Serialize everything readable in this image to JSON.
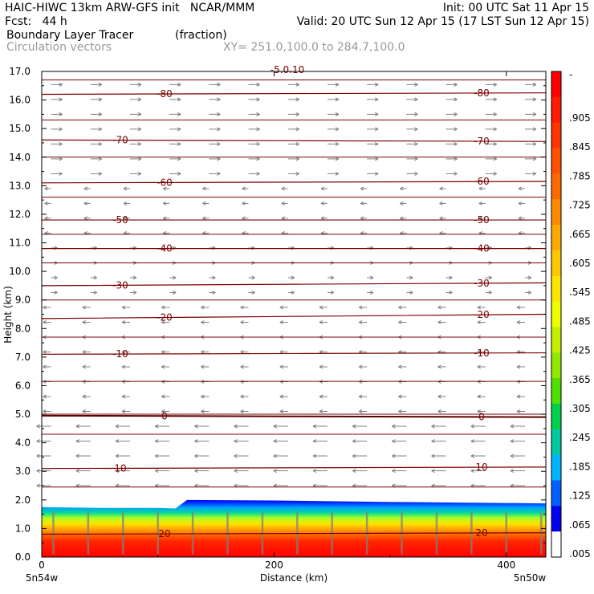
{
  "header": {
    "line1_left": "HAIC-HIWC 13km ARW-GFS init   NCAR/MMM",
    "line1_right": "Init: 00 UTC Sat 11 Apr 15",
    "line2_left": "Fcst:   44 h",
    "line2_right": "Valid: 20 UTC Sun 12 Apr 15 (17 LST Sun 12 Apr 15)",
    "field_name": "Boundary Layer Tracer",
    "field_units": "(fraction)",
    "overlay_name": "Circulation vectors",
    "xsection": "XY= 251.0,100.0 to 284.7,100.0"
  },
  "chart_data": {
    "type": "heatmap",
    "ylabel": "Height (km)",
    "xlabel": "Distance (km)",
    "x_endpoints": [
      "5n54w",
      "5n50w"
    ],
    "xlim": [
      0,
      434
    ],
    "ylim": [
      0,
      17
    ],
    "xticks": [
      "0",
      "200",
      "400"
    ],
    "yticks": [
      "0.0",
      "1.0",
      "2.0",
      "3.0",
      "4.0",
      "5.0",
      "6.0",
      "7.0",
      "8.0",
      "9.0",
      "10.0",
      "11.0",
      "12.0",
      "13.0",
      "14.0",
      "15.0",
      "16.0",
      "17.0"
    ],
    "colorbar": {
      "labels": [
        "-",
        ".905",
        ".845",
        ".785",
        ".725",
        ".665",
        ".605",
        ".545",
        ".485",
        ".425",
        ".365",
        ".305",
        ".245",
        ".185",
        ".125",
        ".065",
        ".005"
      ],
      "colors": [
        "#ff0000",
        "#ff1a00",
        "#ff3300",
        "#ff5000",
        "#ff6a00",
        "#ff8a00",
        "#ffaa00",
        "#ffc800",
        "#ffe600",
        "#eeff00",
        "#c4f000",
        "#90e800",
        "#50e000",
        "#00d04a",
        "#00c8a0",
        "#00b4ff",
        "#0060ff",
        "#0000f0",
        "#ffffff"
      ]
    },
    "tracer_top_km": [
      {
        "x": 0,
        "top": 1.75
      },
      {
        "x": 50,
        "top": 1.72
      },
      {
        "x": 100,
        "top": 1.72
      },
      {
        "x": 115,
        "top": 1.7
      },
      {
        "x": 125,
        "top": 2.0
      },
      {
        "x": 200,
        "top": 1.98
      },
      {
        "x": 300,
        "top": 1.93
      },
      {
        "x": 434,
        "top": 1.88
      }
    ],
    "temperature_contours": [
      {
        "label": "-80",
        "start_km": 16.2,
        "end_km": 16.25
      },
      {
        "label": "-70",
        "start_km": 14.6,
        "end_km": 14.55
      },
      {
        "label": "-60",
        "start_km": 13.1,
        "end_km": 13.15
      },
      {
        "label": "-50",
        "start_km": 11.8,
        "end_km": 11.8
      },
      {
        "label": "-40",
        "start_km": 10.8,
        "end_km": 10.8
      },
      {
        "label": "-30",
        "start_km": 9.5,
        "end_km": 9.6
      },
      {
        "label": "-20",
        "start_km": 8.35,
        "end_km": 8.5
      },
      {
        "label": "-10",
        "start_km": 7.1,
        "end_km": 7.15
      },
      {
        "label": "0",
        "start_km": 4.95,
        "end_km": 4.9
      },
      {
        "label": "10",
        "start_km": 3.1,
        "end_km": 3.15
      },
      {
        "label": "20",
        "start_km": 0.8,
        "end_km": 0.85
      }
    ],
    "extra_contours_km": [
      16.7,
      15.3,
      14.0,
      12.6,
      11.3,
      10.3,
      9.0,
      7.7,
      6.15,
      5.0,
      4.3,
      2.45
    ],
    "top_label": "-5.0.10"
  }
}
